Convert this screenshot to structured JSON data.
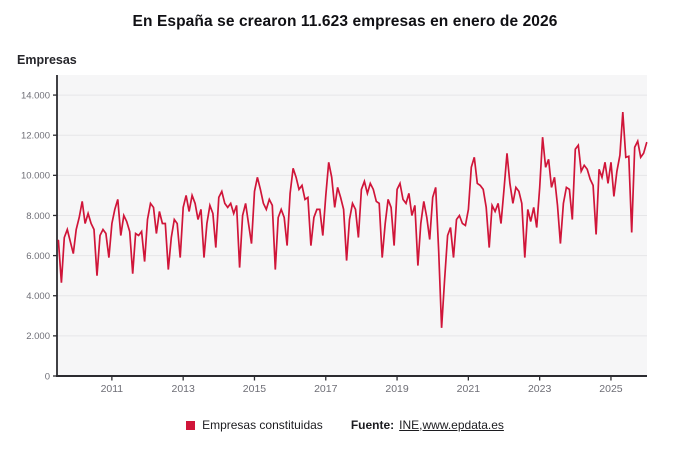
{
  "title": "En España se crearon 11.623 empresas en enero de 2026",
  "y_axis_title": "Empresas",
  "legend": {
    "series_label": "Empresas constituidas",
    "source_label": "Fuente:",
    "link_ine": "INE",
    "link_separator": ", ",
    "link_epdata": "www.epdata.es"
  },
  "colors": {
    "line": "#d01539",
    "legend_swatch": "#d01539",
    "plot_bg": "#f6f6f7",
    "grid": "#e6e6e8",
    "axis": "#2b2b30",
    "tick_text": "#6e6e76",
    "title_text": "#101014"
  },
  "chart_data": {
    "type": "line",
    "title": "En España se crearon 11.623 empresas en enero de 2026",
    "ylabel": "Empresas",
    "x_start": "2009-07",
    "x_end": "2026-01",
    "frequency": "monthly",
    "ylim": [
      0,
      15000
    ],
    "y_ticks": [
      0,
      2000,
      4000,
      6000,
      8000,
      10000,
      12000,
      14000
    ],
    "x_tick_years": [
      2011,
      2013,
      2015,
      2017,
      2019,
      2021,
      2023,
      2025
    ],
    "grid": "horizontal",
    "legend_position": "bottom",
    "series": [
      {
        "name": "Empresas constituidas",
        "color": "#d01539",
        "values": [
          6750,
          4650,
          6900,
          7300,
          6700,
          6100,
          7300,
          7900,
          8700,
          7600,
          8100,
          7600,
          7300,
          5000,
          7000,
          7300,
          7100,
          5900,
          7600,
          8300,
          8800,
          7000,
          8000,
          7700,
          7200,
          5100,
          7100,
          7000,
          7200,
          5700,
          7800,
          8600,
          8400,
          7100,
          8200,
          7600,
          7600,
          5300,
          6900,
          7800,
          7600,
          5900,
          8400,
          9000,
          8200,
          9000,
          8600,
          7800,
          8300,
          5900,
          7600,
          8500,
          8100,
          6400,
          8900,
          9200,
          8600,
          8400,
          8600,
          8100,
          8500,
          5400,
          8000,
          8600,
          7600,
          6600,
          9200,
          9900,
          9300,
          8600,
          8300,
          8800,
          8500,
          5300,
          7900,
          8300,
          7900,
          6500,
          9100,
          10350,
          9900,
          9300,
          9500,
          8800,
          8900,
          6500,
          7900,
          8300,
          8300,
          7000,
          9000,
          10650,
          9900,
          8400,
          9400,
          8900,
          8300,
          5750,
          7800,
          8600,
          8300,
          6900,
          9300,
          9700,
          9100,
          9600,
          9300,
          8700,
          8600,
          5900,
          7600,
          8800,
          8400,
          6500,
          9300,
          9600,
          8800,
          8600,
          9100,
          8000,
          8500,
          5500,
          7600,
          8700,
          7900,
          6800,
          8900,
          9400,
          6200,
          2400,
          4800,
          7000,
          7400,
          5900,
          7800,
          8000,
          7600,
          7500,
          8300,
          10400,
          10900,
          9600,
          9500,
          9300,
          8400,
          6400,
          8500,
          8200,
          8600,
          7600,
          9300,
          11100,
          9600,
          8600,
          9400,
          9200,
          8600,
          5900,
          8300,
          7700,
          8400,
          7400,
          9400,
          11900,
          10400,
          10800,
          9400,
          9900,
          8500,
          6600,
          8600,
          9400,
          9300,
          7800,
          11300,
          11500,
          10200,
          10500,
          10300,
          9800,
          9500,
          7050,
          10300,
          9900,
          10650,
          9600,
          10650,
          8950,
          10200,
          11000,
          13150,
          10900,
          10950,
          7150,
          11400,
          11700,
          10900,
          11100,
          11623
        ]
      }
    ]
  }
}
